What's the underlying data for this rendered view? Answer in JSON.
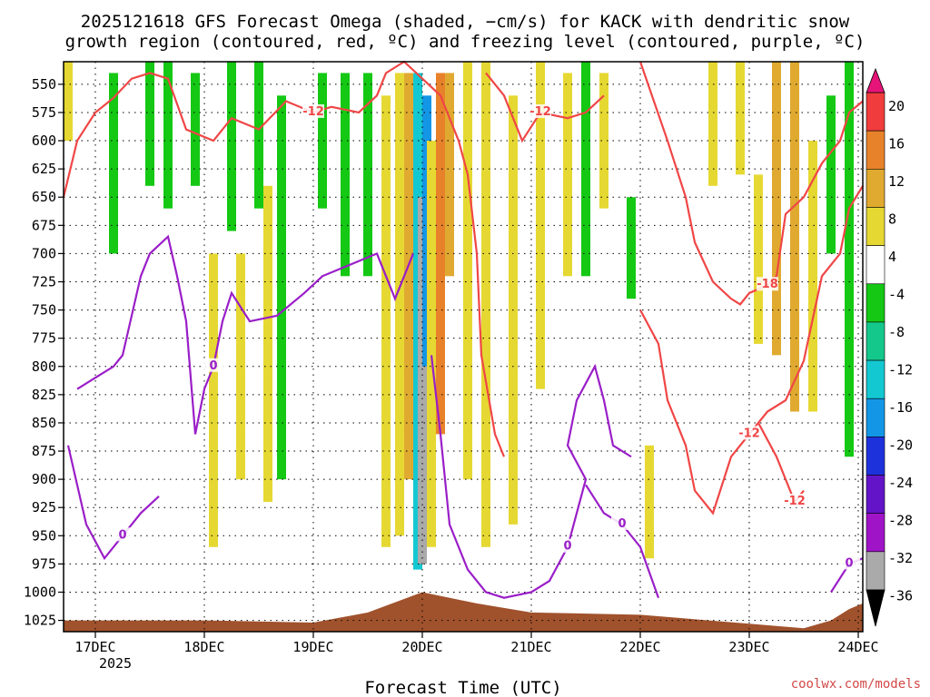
{
  "chart_data": {
    "type": "heatmap",
    "title_line1": "2025121618 GFS Forecast Omega (shaded, −cm/s) for KACK with dendritic snow",
    "title_line2": "growth region (contoured, red, ºC) and freezing level (contoured, purple, ºC)",
    "xlabel": "Forecast Time (UTC)",
    "source": "coolwx.com/models",
    "y_ticks": [
      "550",
      "575",
      "600",
      "625",
      "650",
      "675",
      "700",
      "725",
      "750",
      "775",
      "800",
      "825",
      "850",
      "875",
      "900",
      "925",
      "950",
      "975",
      "1000",
      "1025"
    ],
    "y_range_hPa": [
      530,
      1035
    ],
    "x_range_hours": [
      -7,
      169
    ],
    "x_ticks": [
      {
        "label": "17DEC",
        "sub": "2025",
        "hour": 0
      },
      {
        "label": "18DEC",
        "sub": "",
        "hour": 24
      },
      {
        "label": "19DEC",
        "sub": "",
        "hour": 48
      },
      {
        "label": "20DEC",
        "sub": "",
        "hour": 72
      },
      {
        "label": "21DEC",
        "sub": "",
        "hour": 96
      },
      {
        "label": "22DEC",
        "sub": "",
        "hour": 120
      },
      {
        "label": "23DEC",
        "sub": "",
        "hour": 144
      },
      {
        "label": "24DEC",
        "sub": "",
        "hour": 168
      }
    ],
    "colorbar": {
      "labels": [
        "20",
        "16",
        "12",
        "8",
        "4",
        "-4",
        "-8",
        "-12",
        "-16",
        "-20",
        "-24",
        "-28",
        "-32",
        "-36"
      ],
      "bands": [
        {
          "from": 16,
          "to": 20,
          "color": "#f03c3c"
        },
        {
          "from": 12,
          "to": 16,
          "color": "#e8822a"
        },
        {
          "from": 8,
          "to": 12,
          "color": "#e0aa30"
        },
        {
          "from": 4,
          "to": 8,
          "color": "#e6d832"
        },
        {
          "from": -4,
          "to": 4,
          "color": "#ffffff"
        },
        {
          "from": -8,
          "to": -4,
          "color": "#14c814"
        },
        {
          "from": -12,
          "to": -8,
          "color": "#14c88c"
        },
        {
          "from": -16,
          "to": -12,
          "color": "#14c8d2"
        },
        {
          "from": -20,
          "to": -16,
          "color": "#1496e6"
        },
        {
          "from": -24,
          "to": -20,
          "color": "#1e32dc"
        },
        {
          "from": -28,
          "to": -24,
          "color": "#6414c8"
        },
        {
          "from": -32,
          "to": -28,
          "color": "#a014c8"
        },
        {
          "from": -36,
          "to": -32,
          "color": "#aaaaaa"
        }
      ],
      "top_color": "#e61478",
      "bottom_color": "#000000"
    },
    "omega_shading": [
      {
        "hour": -6,
        "p1": 530,
        "p2": 600,
        "value": 6
      },
      {
        "hour": 4,
        "p1": 540,
        "p2": 700,
        "value": -6
      },
      {
        "hour": 12,
        "p1": 530,
        "p2": 640,
        "value": -6
      },
      {
        "hour": 16,
        "p1": 530,
        "p2": 660,
        "value": -6
      },
      {
        "hour": 22,
        "p1": 540,
        "p2": 640,
        "value": -6
      },
      {
        "hour": 30,
        "p1": 530,
        "p2": 680,
        "value": -6
      },
      {
        "hour": 36,
        "p1": 530,
        "p2": 660,
        "value": -6
      },
      {
        "hour": 26,
        "p1": 700,
        "p2": 960,
        "value": 6
      },
      {
        "hour": 32,
        "p1": 700,
        "p2": 900,
        "value": 6
      },
      {
        "hour": 38,
        "p1": 640,
        "p2": 920,
        "value": 6
      },
      {
        "hour": 41,
        "p1": 560,
        "p2": 900,
        "value": -6
      },
      {
        "hour": 50,
        "p1": 540,
        "p2": 660,
        "value": -6
      },
      {
        "hour": 55,
        "p1": 540,
        "p2": 720,
        "value": -6
      },
      {
        "hour": 60,
        "p1": 540,
        "p2": 720,
        "value": -6
      },
      {
        "hour": 64,
        "p1": 560,
        "p2": 960,
        "value": 6
      },
      {
        "hour": 67,
        "p1": 540,
        "p2": 950,
        "value": 7
      },
      {
        "hour": 69,
        "p1": 540,
        "p2": 900,
        "value": 10
      },
      {
        "hour": 71,
        "p1": 540,
        "p2": 980,
        "value": -14
      },
      {
        "hour": 72,
        "p1": 650,
        "p2": 975,
        "value": -36
      },
      {
        "hour": 73,
        "p1": 560,
        "p2": 800,
        "value": -18
      },
      {
        "hour": 74,
        "p1": 600,
        "p2": 960,
        "value": 6
      },
      {
        "hour": 76,
        "p1": 540,
        "p2": 860,
        "value": 13
      },
      {
        "hour": 78,
        "p1": 540,
        "p2": 720,
        "value": 10
      },
      {
        "hour": 82,
        "p1": 530,
        "p2": 900,
        "value": 6
      },
      {
        "hour": 86,
        "p1": 530,
        "p2": 960,
        "value": 6
      },
      {
        "hour": 92,
        "p1": 560,
        "p2": 940,
        "value": 6
      },
      {
        "hour": 98,
        "p1": 530,
        "p2": 820,
        "value": 6
      },
      {
        "hour": 104,
        "p1": 540,
        "p2": 720,
        "value": 6
      },
      {
        "hour": 108,
        "p1": 530,
        "p2": 720,
        "value": -6
      },
      {
        "hour": 112,
        "p1": 540,
        "p2": 660,
        "value": 6
      },
      {
        "hour": 118,
        "p1": 650,
        "p2": 740,
        "value": -6
      },
      {
        "hour": 122,
        "p1": 870,
        "p2": 970,
        "value": 6
      },
      {
        "hour": 136,
        "p1": 530,
        "p2": 640,
        "value": 6
      },
      {
        "hour": 142,
        "p1": 530,
        "p2": 630,
        "value": 6
      },
      {
        "hour": 146,
        "p1": 630,
        "p2": 780,
        "value": 6
      },
      {
        "hour": 150,
        "p1": 530,
        "p2": 790,
        "value": 9
      },
      {
        "hour": 154,
        "p1": 530,
        "p2": 840,
        "value": 10
      },
      {
        "hour": 158,
        "p1": 600,
        "p2": 840,
        "value": 7
      },
      {
        "hour": 162,
        "p1": 560,
        "p2": 700,
        "value": -6
      },
      {
        "hour": 166,
        "p1": 530,
        "p2": 880,
        "value": -6
      }
    ],
    "contours_red": [
      {
        "label": "-12",
        "points": [
          [
            -7,
            650
          ],
          [
            -4,
            600
          ],
          [
            0,
            575
          ],
          [
            4,
            562
          ],
          [
            8,
            545
          ],
          [
            12,
            540
          ],
          [
            16,
            545
          ],
          [
            20,
            590
          ],
          [
            26,
            600
          ],
          [
            30,
            580
          ],
          [
            36,
            590
          ],
          [
            42,
            565
          ],
          [
            48,
            575
          ],
          [
            52,
            570
          ],
          [
            58,
            575
          ],
          [
            62,
            560
          ],
          [
            64,
            540
          ],
          [
            68,
            530
          ],
          [
            76,
            560
          ],
          [
            80,
            600
          ],
          [
            82,
            630
          ],
          [
            84,
            700
          ],
          [
            85,
            790
          ],
          [
            88,
            860
          ],
          [
            90,
            880
          ]
        ]
      },
      {
        "label": "-12",
        "points": [
          [
            86,
            540
          ],
          [
            90,
            560
          ],
          [
            94,
            600
          ],
          [
            98,
            575
          ],
          [
            104,
            580
          ],
          [
            108,
            575
          ],
          [
            112,
            560
          ]
        ]
      },
      {
        "label": "-18",
        "points": [
          [
            120,
            530
          ],
          [
            126,
            600
          ],
          [
            130,
            650
          ],
          [
            132,
            690
          ],
          [
            136,
            725
          ],
          [
            140,
            740
          ],
          [
            142,
            745
          ],
          [
            144,
            735
          ],
          [
            148,
            728
          ],
          [
            150,
            720
          ],
          [
            152,
            665
          ],
          [
            156,
            650
          ],
          [
            160,
            620
          ],
          [
            164,
            600
          ],
          [
            166,
            575
          ],
          [
            169,
            565
          ]
        ]
      },
      {
        "label": "-12",
        "points": [
          [
            120,
            750
          ],
          [
            124,
            780
          ],
          [
            126,
            830
          ],
          [
            130,
            870
          ],
          [
            132,
            910
          ],
          [
            136,
            930
          ],
          [
            140,
            880
          ],
          [
            144,
            860
          ],
          [
            148,
            840
          ],
          [
            152,
            830
          ],
          [
            156,
            795
          ],
          [
            160,
            720
          ],
          [
            164,
            700
          ],
          [
            166,
            660
          ],
          [
            169,
            640
          ]
        ]
      },
      {
        "label": "-12",
        "points": [
          [
            146,
            850
          ],
          [
            150,
            880
          ],
          [
            154,
            920
          ],
          [
            156,
            910
          ]
        ]
      }
    ],
    "contours_purple": [
      {
        "label": "0",
        "points": [
          [
            -6,
            870
          ],
          [
            -2,
            940
          ],
          [
            2,
            970
          ],
          [
            6,
            950
          ],
          [
            10,
            930
          ],
          [
            14,
            915
          ]
        ]
      },
      {
        "label": "0",
        "points": [
          [
            -4,
            820
          ],
          [
            0,
            810
          ],
          [
            4,
            800
          ],
          [
            6,
            790
          ],
          [
            10,
            720
          ],
          [
            12,
            700
          ],
          [
            16,
            685
          ],
          [
            18,
            720
          ],
          [
            20,
            760
          ],
          [
            22,
            860
          ],
          [
            24,
            820
          ],
          [
            26,
            800
          ],
          [
            28,
            760
          ],
          [
            30,
            735
          ],
          [
            34,
            760
          ],
          [
            40,
            755
          ],
          [
            46,
            735
          ],
          [
            50,
            720
          ],
          [
            56,
            710
          ],
          [
            62,
            700
          ],
          [
            66,
            740
          ],
          [
            70,
            700
          ]
        ]
      },
      {
        "label": "0",
        "points": [
          [
            74,
            790
          ],
          [
            76,
            860
          ],
          [
            78,
            940
          ],
          [
            82,
            980
          ],
          [
            86,
            1000
          ],
          [
            90,
            1005
          ],
          [
            96,
            1000
          ],
          [
            100,
            990
          ],
          [
            104,
            960
          ],
          [
            106,
            930
          ],
          [
            108,
            900
          ],
          [
            104,
            870
          ],
          [
            106,
            830
          ],
          [
            110,
            800
          ],
          [
            112,
            830
          ],
          [
            114,
            870
          ],
          [
            118,
            880
          ]
        ]
      },
      {
        "label": "0",
        "points": [
          [
            108,
            905
          ],
          [
            112,
            930
          ],
          [
            116,
            940
          ],
          [
            120,
            960
          ],
          [
            124,
            1005
          ]
        ]
      },
      {
        "label": "0",
        "points": [
          [
            162,
            1000
          ],
          [
            166,
            975
          ],
          [
            169,
            970
          ]
        ]
      }
    ],
    "terrain": [
      [
        -7,
        1025
      ],
      [
        10,
        1025
      ],
      [
        24,
        1025
      ],
      [
        48,
        1027
      ],
      [
        60,
        1018
      ],
      [
        72,
        1000
      ],
      [
        84,
        1010
      ],
      [
        96,
        1018
      ],
      [
        120,
        1020
      ],
      [
        144,
        1028
      ],
      [
        156,
        1032
      ],
      [
        162,
        1025
      ],
      [
        166,
        1015
      ],
      [
        169,
        1010
      ]
    ]
  }
}
